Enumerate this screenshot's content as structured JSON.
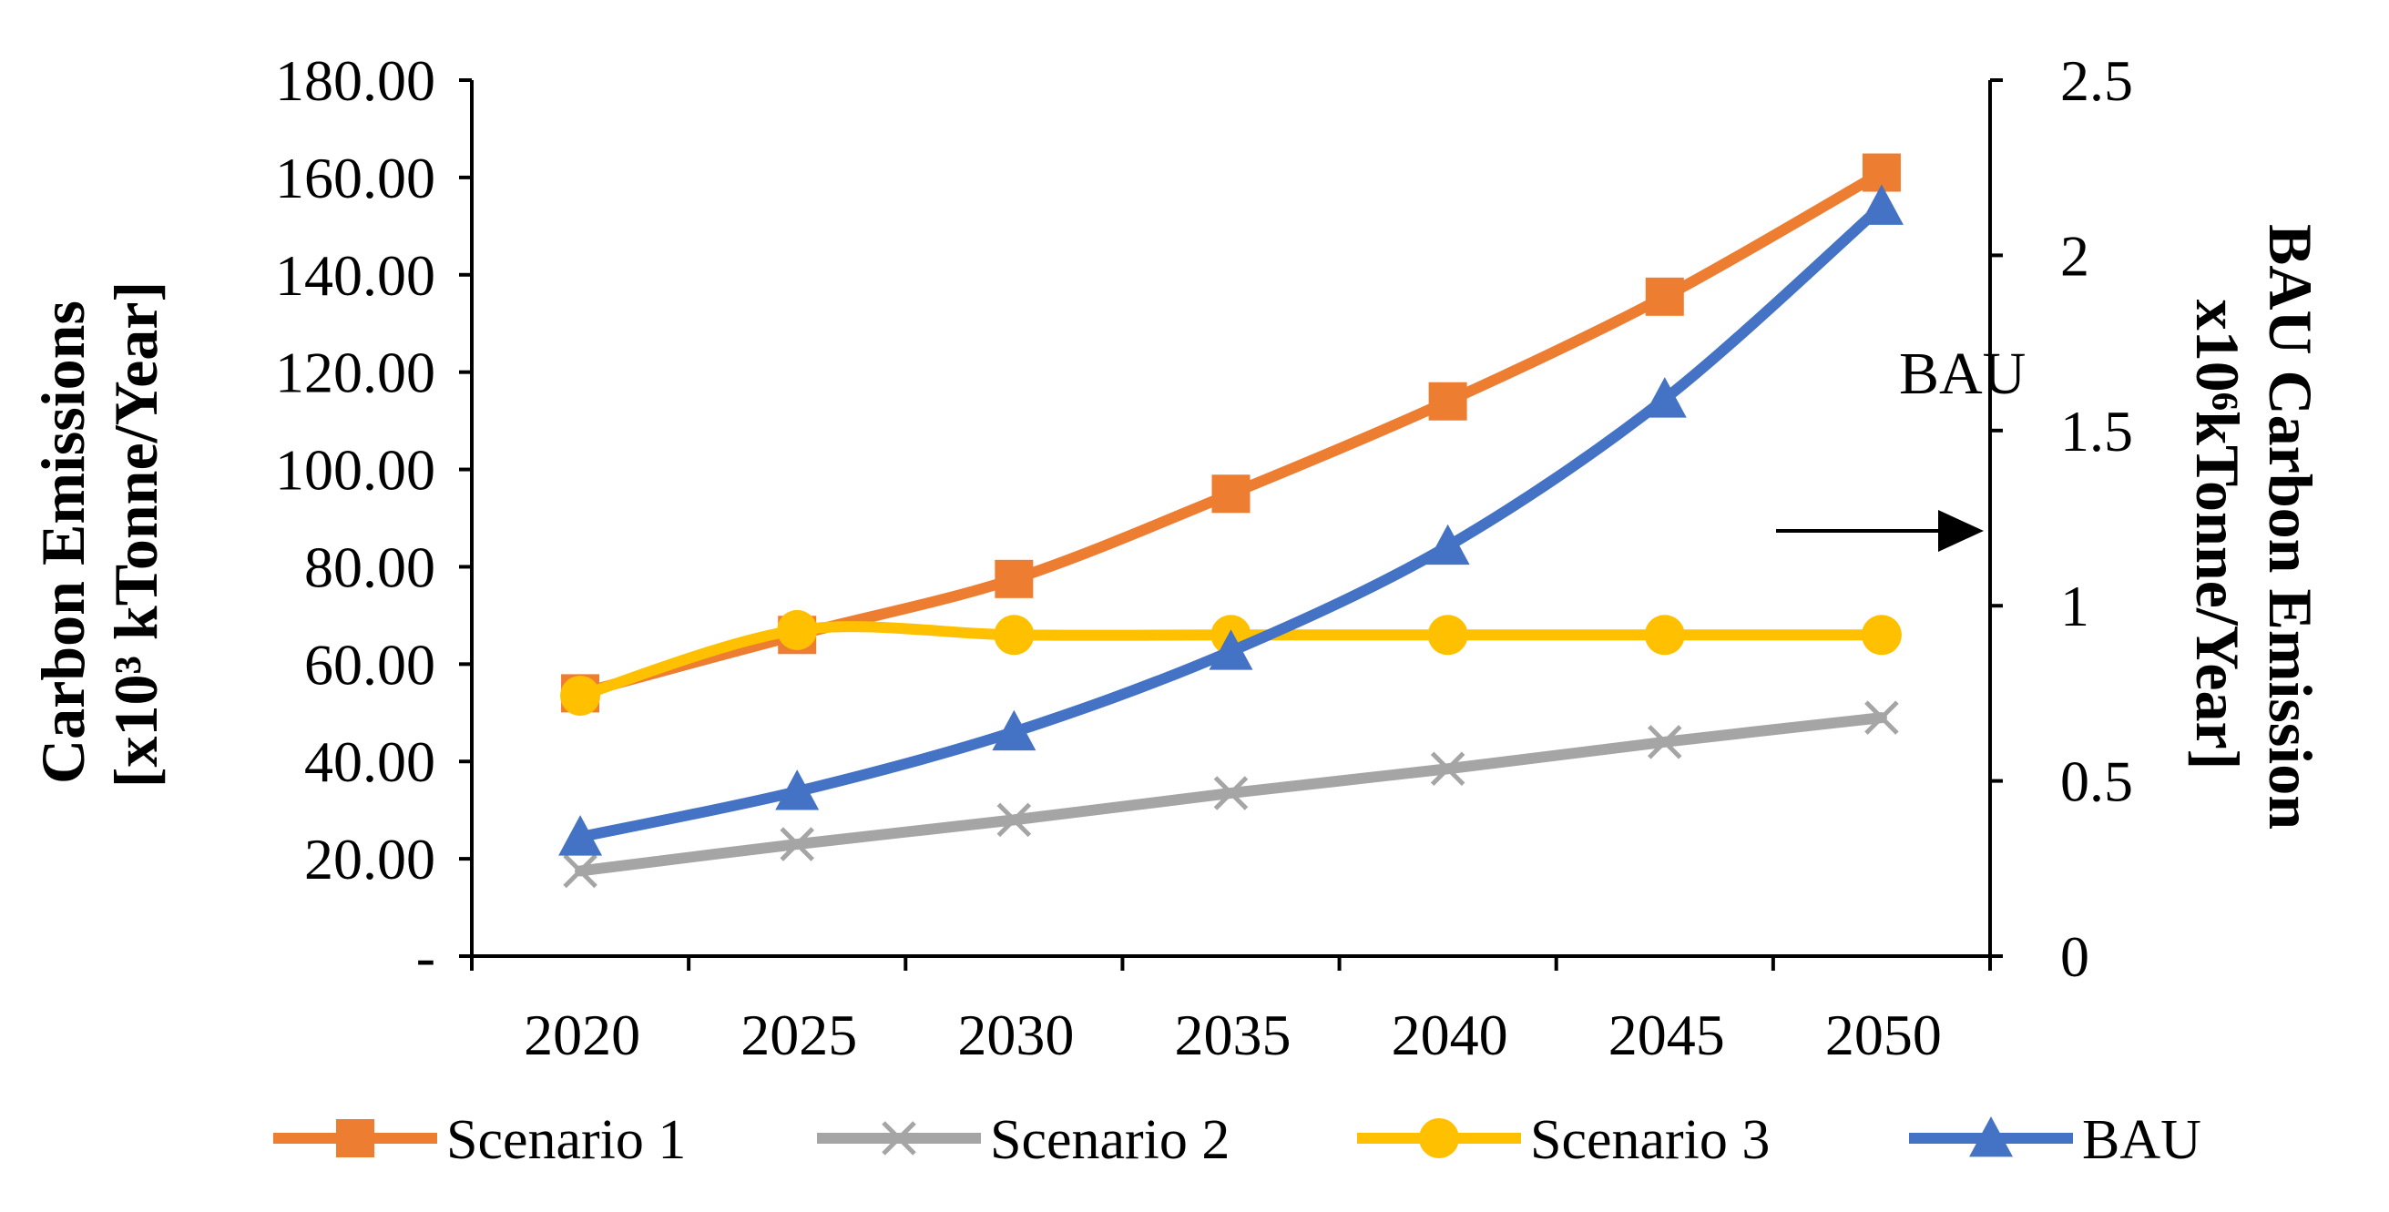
{
  "chart_data": {
    "type": "line",
    "title": "",
    "categories": [
      "2020",
      "2025",
      "2030",
      "2035",
      "2040",
      "2045",
      "2050"
    ],
    "ylabel_left": [
      "Carbon Emissions",
      "[x10³ kTonne/Year]"
    ],
    "ylabel_right": [
      "BAU Carbon Emission",
      "x10⁶kTonne/Year]"
    ],
    "y_left": {
      "min": 0,
      "max": 180,
      "step": 20,
      "ticks": [
        "-",
        "20.00",
        "40.00",
        "60.00",
        "80.00",
        "100.00",
        "120.00",
        "140.00",
        "160.00",
        "180.00"
      ]
    },
    "y_right": {
      "min": 0,
      "max": 2.5,
      "step": 0.5,
      "ticks": [
        "0",
        "0.5",
        "1",
        "1.5",
        "2",
        "2.5"
      ]
    },
    "series": [
      {
        "name": "Scenario 1",
        "axis": "left",
        "color": "#ED7D31",
        "marker": "square",
        "values": [
          54,
          66,
          77.5,
          95,
          114,
          135.5,
          161
        ]
      },
      {
        "name": "Scenario 2",
        "axis": "left",
        "color": "#A5A5A5",
        "marker": "x",
        "values": [
          17.5,
          23,
          28,
          33.5,
          38.5,
          44,
          49
        ]
      },
      {
        "name": "Scenario 3",
        "axis": "left",
        "color": "#FFC000",
        "marker": "circle",
        "values": [
          53.5,
          67,
          66,
          66,
          66,
          66,
          66
        ]
      },
      {
        "name": "BAU",
        "axis": "right",
        "color": "#4472C4",
        "marker": "triangle",
        "values": [
          0.34,
          0.47,
          0.64,
          0.87,
          1.17,
          1.59,
          2.14
        ]
      }
    ],
    "annotation": {
      "text": "BAU",
      "arrow_direction": "right"
    },
    "legend_position": "bottom"
  }
}
